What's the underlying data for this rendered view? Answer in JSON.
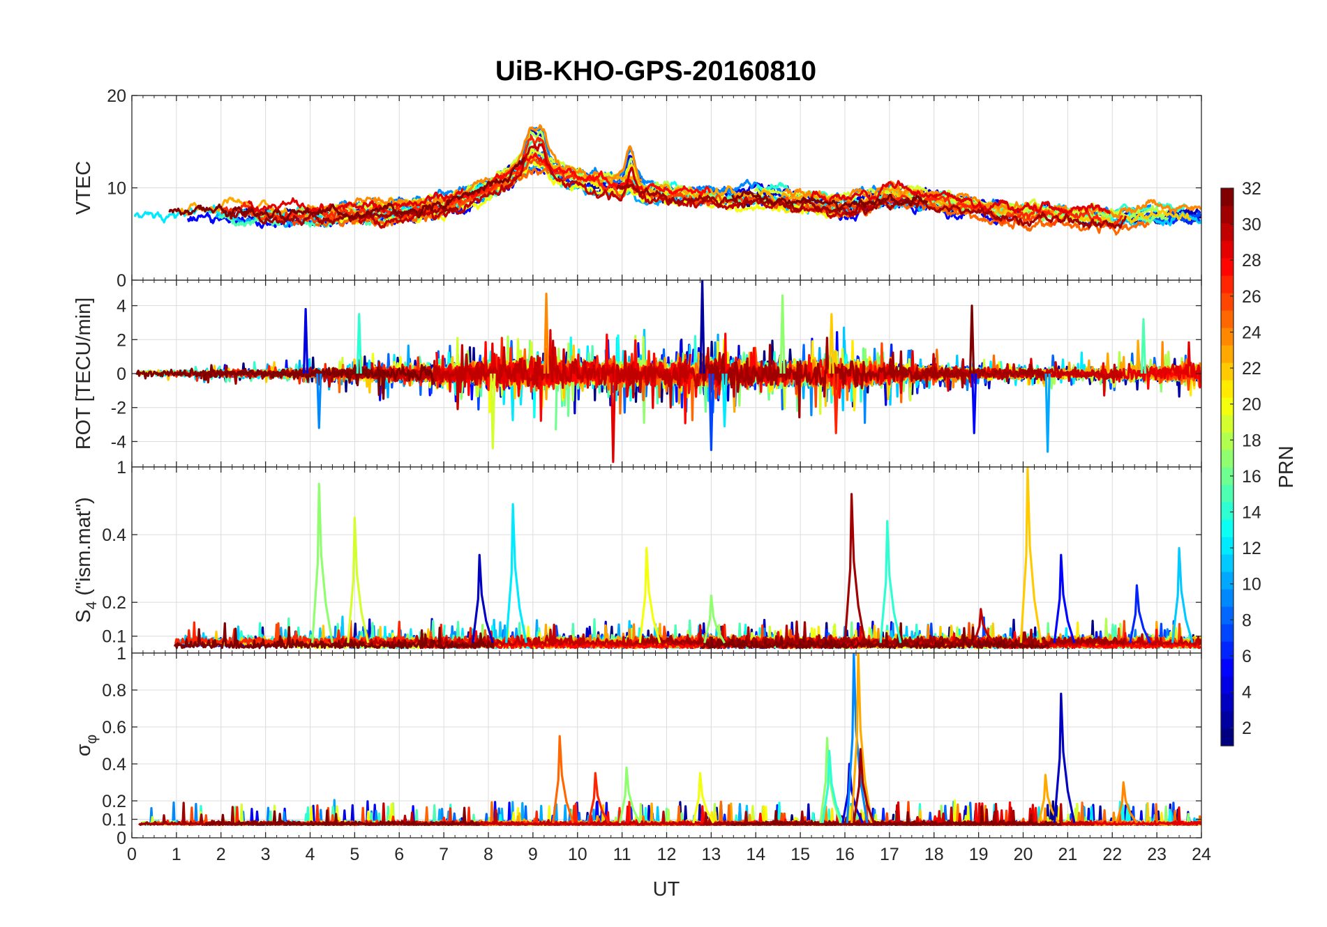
{
  "title": "UiB-KHO-GPS-20160810",
  "chart_data": {
    "type": "line",
    "title": "UiB-KHO-GPS-20160810",
    "xlabel": "UT",
    "xlim": [
      0,
      24
    ],
    "x_ticks": [
      "0",
      "1",
      "2",
      "3",
      "4",
      "5",
      "6",
      "7",
      "8",
      "9",
      "10",
      "11",
      "12",
      "13",
      "14",
      "15",
      "16",
      "17",
      "18",
      "19",
      "20",
      "21",
      "22",
      "23",
      "24"
    ],
    "panels": [
      {
        "id": "vtec",
        "ylabel": "VTEC",
        "ylim": [
          0,
          20
        ],
        "tick_values": [
          0,
          10,
          20
        ],
        "tick_labels": [
          "0",
          "10",
          "20"
        ]
      },
      {
        "id": "rot",
        "ylabel": "ROT [TECU/min]",
        "ylim": [
          -5.5,
          5.5
        ],
        "tick_values": [
          -4,
          -2,
          0,
          2,
          4
        ],
        "tick_labels": [
          "-4",
          "-2",
          "0",
          "2",
          "4"
        ]
      },
      {
        "id": "s4",
        "ylabel_main": "S",
        "ylabel_sub": "4",
        "ylabel_rest": " (\"ism.mat\")",
        "ylim": [
          0.05,
          0.6
        ],
        "tick_values": [
          0.1,
          0.2,
          0.4
        ],
        "tick_labels": [
          "0.1",
          "0.2",
          "0.4"
        ],
        "top_tick_label": "1"
      },
      {
        "id": "sigma",
        "ylabel_main": "σ",
        "ylabel_sub": "φ",
        "ylim": [
          0,
          1
        ],
        "tick_values": [
          0,
          0.1,
          0.2,
          0.4,
          0.6,
          0.8
        ],
        "tick_labels": [
          "0",
          "0.1",
          "0.2",
          "0.4",
          "0.6",
          "0.8"
        ],
        "top_tick_label": "1"
      }
    ],
    "colorbar": {
      "label": "PRN",
      "range": [
        1,
        32
      ],
      "tick_values": [
        2,
        4,
        6,
        8,
        10,
        12,
        14,
        16,
        18,
        20,
        22,
        24,
        26,
        28,
        30,
        32
      ],
      "tick_labels": [
        "2",
        "4",
        "6",
        "8",
        "10",
        "12",
        "14",
        "16",
        "18",
        "20",
        "22",
        "24",
        "26",
        "28",
        "30",
        "32"
      ],
      "colormap": "jet"
    },
    "series_note": "One trace per GPS PRN 1-32, coloured by PRN",
    "features": {
      "vtec_baseline_by_hour": [
        [
          0,
          7
        ],
        [
          2,
          7.5
        ],
        [
          4,
          7
        ],
        [
          6,
          7.5
        ],
        [
          7,
          8
        ],
        [
          8,
          10
        ],
        [
          9,
          12.5
        ],
        [
          10,
          11
        ],
        [
          11,
          10
        ],
        [
          12,
          9.5
        ],
        [
          13,
          9
        ],
        [
          14,
          9
        ],
        [
          15,
          8.5
        ],
        [
          16,
          8
        ],
        [
          17,
          9
        ],
        [
          18,
          8.5
        ],
        [
          19,
          7.5
        ],
        [
          20,
          7
        ],
        [
          21,
          7
        ],
        [
          22,
          6.5
        ],
        [
          23,
          7
        ],
        [
          24,
          7
        ]
      ],
      "vtec_peaks": [
        {
          "t": 8.95,
          "v": 15.5
        },
        {
          "t": 9.2,
          "v": 14.5
        },
        {
          "t": 11.2,
          "v": 14.3
        }
      ],
      "rot_activity_by_hour": [
        [
          0,
          0.5
        ],
        [
          3,
          0.6
        ],
        [
          5,
          1
        ],
        [
          7,
          1.5
        ],
        [
          8,
          2
        ],
        [
          9,
          2.5
        ],
        [
          10,
          2
        ],
        [
          12,
          2
        ],
        [
          13,
          2.5
        ],
        [
          14,
          2
        ],
        [
          15,
          2
        ],
        [
          16,
          2.5
        ],
        [
          17,
          1.5
        ],
        [
          19,
          0.8
        ],
        [
          21,
          0.8
        ],
        [
          22,
          1.2
        ],
        [
          24,
          1.5
        ]
      ],
      "rot_spikes": [
        {
          "t": 3.9,
          "v": 3.8
        },
        {
          "t": 4.2,
          "v": -3.2
        },
        {
          "t": 5.1,
          "v": 3.5
        },
        {
          "t": 8.1,
          "v": -4.4
        },
        {
          "t": 9.3,
          "v": 4.7
        },
        {
          "t": 10.8,
          "v": -5.2
        },
        {
          "t": 12.8,
          "v": 5.5
        },
        {
          "t": 13.0,
          "v": -4.5
        },
        {
          "t": 13.3,
          "v": -3.1
        },
        {
          "t": 14.6,
          "v": 4.6
        },
        {
          "t": 15.7,
          "v": 3.5
        },
        {
          "t": 15.8,
          "v": -3.5
        },
        {
          "t": 18.85,
          "v": 4.0
        },
        {
          "t": 18.9,
          "v": -3.5
        },
        {
          "t": 20.55,
          "v": -4.6
        },
        {
          "t": 22.7,
          "v": 3.2
        }
      ],
      "s4_spikes": [
        {
          "t": 4.2,
          "v": 0.55,
          "prn": 17
        },
        {
          "t": 5.0,
          "v": 0.45,
          "prn": 19
        },
        {
          "t": 7.8,
          "v": 0.34,
          "prn": 3
        },
        {
          "t": 8.55,
          "v": 0.49,
          "prn": 12
        },
        {
          "t": 11.55,
          "v": 0.36,
          "prn": 20
        },
        {
          "t": 13.0,
          "v": 0.22,
          "prn": 17
        },
        {
          "t": 16.15,
          "v": 0.52,
          "prn": 31
        },
        {
          "t": 16.95,
          "v": 0.44,
          "prn": 14
        },
        {
          "t": 19.05,
          "v": 0.18,
          "prn": 30
        },
        {
          "t": 20.1,
          "v": 0.6,
          "prn": 22
        },
        {
          "t": 20.85,
          "v": 0.34,
          "prn": 5
        },
        {
          "t": 22.55,
          "v": 0.25,
          "prn": 6
        },
        {
          "t": 23.5,
          "v": 0.36,
          "prn": 11
        }
      ],
      "sigma_spikes": [
        {
          "t": 9.6,
          "v": 0.55,
          "prn": 25
        },
        {
          "t": 10.4,
          "v": 0.35,
          "prn": 27
        },
        {
          "t": 11.1,
          "v": 0.38,
          "prn": 17
        },
        {
          "t": 12.75,
          "v": 0.35,
          "prn": 20
        },
        {
          "t": 15.6,
          "v": 0.54,
          "prn": 17
        },
        {
          "t": 15.65,
          "v": 0.47,
          "prn": 14
        },
        {
          "t": 16.1,
          "v": 0.4,
          "prn": 4
        },
        {
          "t": 16.2,
          "v": 1.0,
          "prn": 9
        },
        {
          "t": 16.3,
          "v": 1.0,
          "prn": 23
        },
        {
          "t": 16.35,
          "v": 0.48,
          "prn": 31
        },
        {
          "t": 20.5,
          "v": 0.34,
          "prn": 23
        },
        {
          "t": 20.85,
          "v": 0.78,
          "prn": 3
        },
        {
          "t": 22.25,
          "v": 0.3,
          "prn": 24
        }
      ]
    }
  }
}
